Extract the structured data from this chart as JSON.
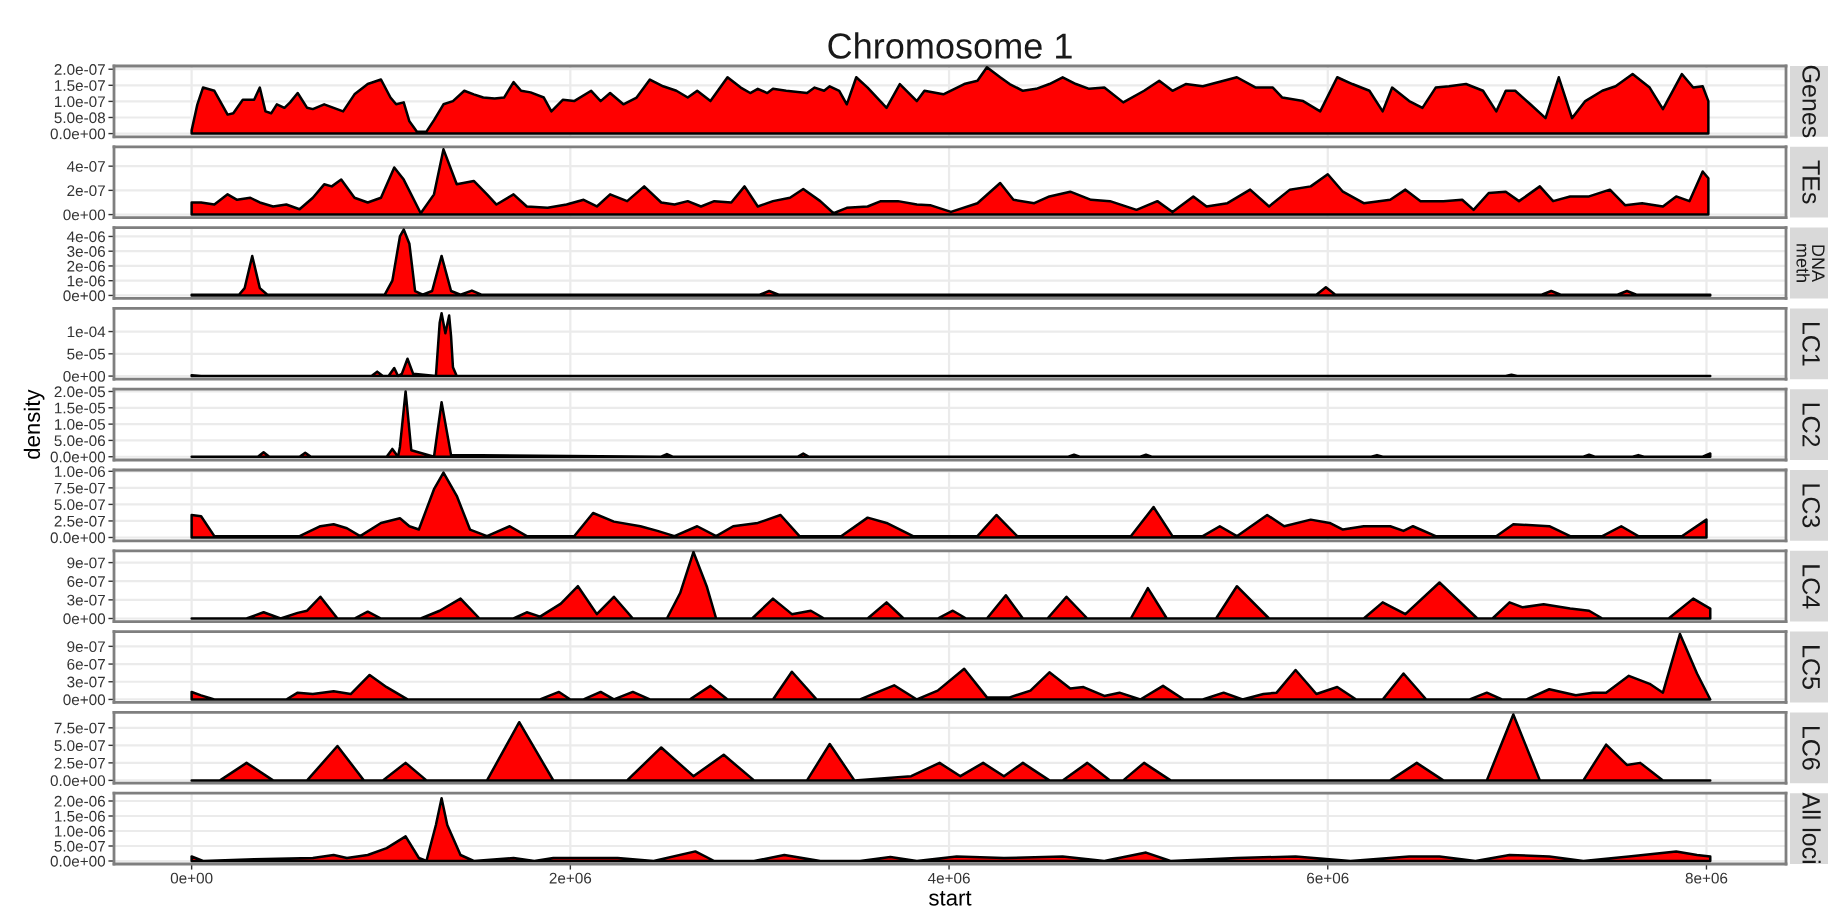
{
  "chart_data": [
    {
      "type": "area",
      "title": "Chromosome 1",
      "xlim": [
        -410000.0,
        8420000.0
      ],
      "xticks": [
        0,
        2000000.0,
        4000000.0,
        6000000.0,
        8000000.0
      ],
      "ylim": [
        -1e-08,
        2.1e-07
      ],
      "yticks": [
        {
          "value": 0,
          "label": "0.0e+00"
        },
        {
          "value": 5e-08,
          "label": "5.0e-08"
        },
        {
          "value": 1e-07,
          "label": "1.0e-07"
        },
        {
          "value": 1.5e-07,
          "label": "1.5e-07"
        },
        {
          "value": 2e-07,
          "label": "2.0e-07"
        }
      ],
      "grid": true,
      "tick_labels": "y",
      "series": [
        {
          "name": "Genes",
          "color": "#ff0000",
          "x": [
            0,
            30000.0,
            60000.0,
            120000.0,
            190000.0,
            220000.0,
            270000.0,
            330000.0,
            360000.0,
            390000.0,
            420000.0,
            450000.0,
            490000.0,
            520000.0,
            560000.0,
            610000.0,
            640000.0,
            700000.0,
            750000.0,
            800000.0,
            860000.0,
            930000.0,
            1000000.0,
            1050000.0,
            1080000.0,
            1120000.0,
            1150000.0,
            1190000.0,
            1240000.0,
            1280000.0,
            1330000.0,
            1380000.0,
            1440000.0,
            1490000.0,
            1540000.0,
            1600000.0,
            1650000.0,
            1700000.0,
            1740000.0,
            1790000.0,
            1860000.0,
            1900000.0,
            1960000.0,
            2020000.0,
            2110000.0,
            2160000.0,
            2210000.0,
            2280000.0,
            2350000.0,
            2420000.0,
            2490000.0,
            2560000.0,
            2620000.0,
            2670000.0,
            2740000.0,
            2830000.0,
            2900000.0,
            2950000.0,
            2990000.0,
            3040000.0,
            3070000.0,
            3140000.0,
            3250000.0,
            3290000.0,
            3340000.0,
            3370000.0,
            3420000.0,
            3460000.0,
            3510000.0,
            3570000.0,
            3670000.0,
            3740000.0,
            3830000.0,
            3870000.0,
            3970000.0,
            4080000.0,
            4150000.0,
            4200000.0,
            4270000.0,
            4320000.0,
            4390000.0,
            4460000.0,
            4530000.0,
            4600000.0,
            4670000.0,
            4740000.0,
            4820000.0,
            4920000.0,
            5030000.0,
            5110000.0,
            5180000.0,
            5250000.0,
            5340000.0,
            5450000.0,
            5520000.0,
            5620000.0,
            5710000.0,
            5760000.0,
            5870000.0,
            5960000.0,
            6050000.0,
            6130000.0,
            6220000.0,
            6290000.0,
            6340000.0,
            6430000.0,
            6500000.0,
            6570000.0,
            6640000.0,
            6730000.0,
            6820000.0,
            6890000.0,
            6940000.0,
            6990000.0,
            7070000.0,
            7150000.0,
            7220000.0,
            7290000.0,
            7360000.0,
            7450000.0,
            7520000.0,
            7610000.0,
            7700000.0,
            7770000.0,
            7870000.0,
            7930000.0,
            7980000.0,
            8010000.0
          ],
          "values": [
            1e-08,
            9e-08,
            1.43e-07,
            1.33e-07,
            5.9e-08,
            6.3e-08,
            1.05e-07,
            1.05e-07,
            1.43e-07,
            6.9e-08,
            6.3e-08,
            9.1e-08,
            8e-08,
            9.7e-08,
            1.26e-07,
            8e-08,
            7.6e-08,
            9.1e-08,
            8e-08,
            6.9e-08,
            1.22e-07,
            1.54e-07,
            1.68e-07,
            1.12e-07,
            9.1e-08,
            9.7e-08,
            3.8e-08,
            6e-09,
            6e-09,
            4.2e-08,
            9.1e-08,
            1.01e-07,
            1.33e-07,
            1.22e-07,
            1.12e-07,
            1.09e-07,
            1.12e-07,
            1.6e-07,
            1.33e-07,
            1.28e-07,
            1.12e-07,
            6.9e-08,
            1.05e-07,
            1.01e-07,
            1.33e-07,
            1.01e-07,
            1.26e-07,
            9.1e-08,
            1.12e-07,
            1.68e-07,
            1.47e-07,
            1.33e-07,
            1.12e-07,
            1.33e-07,
            1.01e-07,
            1.75e-07,
            1.43e-07,
            1.26e-07,
            1.39e-07,
            1.26e-07,
            1.39e-07,
            1.33e-07,
            1.26e-07,
            1.43e-07,
            1.33e-07,
            1.47e-07,
            1.33e-07,
            9.1e-08,
            1.75e-07,
            1.43e-07,
            8e-08,
            1.54e-07,
            1.01e-07,
            1.33e-07,
            1.22e-07,
            1.54e-07,
            1.64e-07,
            2.06e-07,
            1.75e-07,
            1.54e-07,
            1.33e-07,
            1.39e-07,
            1.54e-07,
            1.75e-07,
            1.54e-07,
            1.39e-07,
            1.43e-07,
            9.7e-08,
            1.33e-07,
            1.64e-07,
            1.33e-07,
            1.54e-07,
            1.47e-07,
            1.64e-07,
            1.75e-07,
            1.43e-07,
            1.43e-07,
            1.12e-07,
            1.01e-07,
            6.9e-08,
            1.75e-07,
            1.54e-07,
            1.33e-07,
            6.9e-08,
            1.43e-07,
            1.01e-07,
            8e-08,
            1.43e-07,
            1.47e-07,
            1.54e-07,
            1.33e-07,
            6.9e-08,
            1.33e-07,
            1.33e-07,
            9.1e-08,
            4.8e-08,
            1.75e-07,
            4.8e-08,
            1.01e-07,
            1.33e-07,
            1.47e-07,
            1.85e-07,
            1.43e-07,
            7.6e-08,
            1.85e-07,
            1.43e-07,
            1.47e-07,
            1.01e-07
          ]
        }
      ]
    },
    {
      "type": "area",
      "xlim": [
        -410000.0,
        8420000.0
      ],
      "xticks": [
        0,
        2000000.0,
        4000000.0,
        6000000.0,
        8000000.0
      ],
      "ylim": [
        -2.5e-08,
        5.6e-07
      ],
      "yticks": [
        {
          "value": 0,
          "label": "0e+00"
        },
        {
          "value": 2e-07,
          "label": "2e-07"
        },
        {
          "value": 4e-07,
          "label": "4e-07"
        }
      ],
      "grid": true,
      "tick_labels": "y",
      "series": [
        {
          "name": "TEs",
          "color": "#ff0000",
          "x": [
            0,
            50000.0,
            120000.0,
            190000.0,
            240000.0,
            310000.0,
            360000.0,
            430000.0,
            500000.0,
            570000.0,
            640000.0,
            700000.0,
            740000.0,
            790000.0,
            860000.0,
            930000.0,
            1000000.0,
            1070000.0,
            1120000.0,
            1210000.0,
            1280000.0,
            1330000.0,
            1400000.0,
            1490000.0,
            1560000.0,
            1610000.0,
            1700000.0,
            1770000.0,
            1880000.0,
            1980000.0,
            2070000.0,
            2140000.0,
            2210000.0,
            2300000.0,
            2390000.0,
            2480000.0,
            2550000.0,
            2620000.0,
            2690000.0,
            2760000.0,
            2850000.0,
            2920000.0,
            2990000.0,
            3070000.0,
            3160000.0,
            3230000.0,
            3320000.0,
            3390000.0,
            3460000.0,
            3570000.0,
            3640000.0,
            3730000.0,
            3830000.0,
            3900000.0,
            4010000.0,
            4150000.0,
            4270000.0,
            4340000.0,
            4450000.0,
            4530000.0,
            4640000.0,
            4750000.0,
            4850000.0,
            4990000.0,
            5100000.0,
            5180000.0,
            5290000.0,
            5360000.0,
            5470000.0,
            5590000.0,
            5690000.0,
            5800000.0,
            5910000.0,
            6000000.0,
            6080000.0,
            6190000.0,
            6330000.0,
            6410000.0,
            6490000.0,
            6610000.0,
            6710000.0,
            6770000.0,
            6850000.0,
            6940000.0,
            7010000.0,
            7120000.0,
            7190000.0,
            7280000.0,
            7380000.0,
            7490000.0,
            7570000.0,
            7660000.0,
            7770000.0,
            7840000.0,
            7910000.0,
            7980000.0,
            8010000.0
          ],
          "values": [
            1e-07,
            1e-07,
            8.3e-08,
            1.67e-07,
            1.22e-07,
            1.39e-07,
            1e-07,
            6.7e-08,
            8.3e-08,
            4.4e-08,
            1.39e-07,
            2.5e-07,
            2.33e-07,
            2.89e-07,
            1.39e-07,
            1e-07,
            1.39e-07,
            3.89e-07,
            2.89e-07,
            1.1e-08,
            1.67e-07,
            5.39e-07,
            2.5e-07,
            2.78e-07,
            1.67e-07,
            8.3e-08,
            1.67e-07,
            6.7e-08,
            5.6e-08,
            8.3e-08,
            1.22e-07,
            6.7e-08,
            1.67e-07,
            1.11e-07,
            2.33e-07,
            1e-07,
            8.3e-08,
            1.11e-07,
            6.7e-08,
            1.11e-07,
            1e-07,
            2.33e-07,
            6.7e-08,
            1.11e-07,
            1.39e-07,
            2.11e-07,
            1.11e-07,
            1.1e-08,
            5.6e-08,
            6.7e-08,
            1.11e-07,
            1.11e-07,
            8.3e-08,
            7.8e-08,
            2.2e-08,
            9.4e-08,
            2.61e-07,
            1.22e-07,
            9.4e-08,
            1.5e-07,
            1.89e-07,
            1.22e-07,
            1.11e-07,
            3.9e-08,
            1.11e-07,
            2.2e-08,
            1.5e-07,
            6.7e-08,
            9.4e-08,
            2.06e-07,
            6.7e-08,
            2.06e-07,
            2.33e-07,
            3.33e-07,
            1.89e-07,
            9.4e-08,
            1.22e-07,
            2.06e-07,
            1.11e-07,
            1.11e-07,
            1.22e-07,
            3.9e-08,
            1.78e-07,
            1.89e-07,
            1.11e-07,
            2.33e-07,
            1.11e-07,
            1.5e-07,
            1.5e-07,
            2.06e-07,
            7.8e-08,
            9.4e-08,
            6.7e-08,
            1.5e-07,
            1.11e-07,
            3.56e-07,
            3e-07
          ]
        }
      ]
    },
    {
      "type": "area",
      "xlim": [
        -410000.0,
        8420000.0
      ],
      "xticks": [
        0,
        2000000.0,
        4000000.0,
        6000000.0,
        8000000.0
      ],
      "ylim": [
        -2e-07,
        4.6e-06
      ],
      "yticks": [
        {
          "value": 0,
          "label": "0e+00"
        },
        {
          "value": 1e-06,
          "label": "1e-06"
        },
        {
          "value": 2e-06,
          "label": "2e-06"
        },
        {
          "value": 3e-06,
          "label": "3e-06"
        },
        {
          "value": 4e-06,
          "label": "4e-06"
        }
      ],
      "grid": true,
      "tick_labels": "y",
      "series": [
        {
          "name": "DNA\nmeth",
          "color": "#ff0000",
          "x": [
            0,
            250000.0,
            280000.0,
            320000.0,
            360000.0,
            400000.0,
            1020000.0,
            1060000.0,
            1100000.0,
            1120000.0,
            1150000.0,
            1180000.0,
            1220000.0,
            1270000.0,
            1320000.0,
            1370000.0,
            1420000.0,
            1480000.0,
            1530000.0,
            3000000.0,
            3050000.0,
            3100000.0,
            5940000.0,
            5990000.0,
            6040000.0,
            7130000.0,
            7180000.0,
            7230000.0,
            7530000.0,
            7580000.0,
            7630000.0,
            8020000.0
          ],
          "values": [
            5e-08,
            5e-08,
            5e-07,
            2.68e-06,
            5e-07,
            5e-08,
            5e-08,
            1e-06,
            4e-06,
            4.47e-06,
            3.5e-06,
            3e-07,
            5e-08,
            3e-07,
            2.68e-06,
            3e-07,
            5e-08,
            3.3e-07,
            5e-08,
            5e-08,
            3e-07,
            5e-08,
            5e-08,
            5.6e-07,
            5e-08,
            5e-08,
            3e-07,
            5e-08,
            5e-08,
            3e-07,
            5e-08,
            5e-08
          ]
        }
      ]
    },
    {
      "type": "area",
      "xlim": [
        -410000.0,
        8420000.0
      ],
      "xticks": [
        0,
        2000000.0,
        4000000.0,
        6000000.0,
        8000000.0
      ],
      "ylim": [
        -7e-06,
        0.000152
      ],
      "yticks": [
        {
          "value": 0,
          "label": "0e+00"
        },
        {
          "value": 5e-05,
          "label": "5e-05"
        },
        {
          "value": 0.0001,
          "label": "1e-04"
        }
      ],
      "grid": true,
      "tick_labels": "y",
      "series": [
        {
          "name": "LC1",
          "color": "#ff0000",
          "x": [
            0,
            50000.0,
            950000.0,
            980000.0,
            1010000.0,
            1040000.0,
            1070000.0,
            1090000.0,
            1110000.0,
            1140000.0,
            1170000.0,
            1290000.0,
            1310000.0,
            1320000.0,
            1340000.0,
            1360000.0,
            1370000.0,
            1380000.0,
            1400000.0,
            6940000.0,
            6970000.0,
            7000000.0,
            8020000.0
          ],
          "values": [
            2e-06,
            0,
            0,
            1e-05,
            0,
            0,
            1.8e-05,
            0,
            5e-06,
            3.9e-05,
            5e-06,
            0,
            0.00012,
            0.000141,
            9.6e-05,
            0.000136,
            9e-05,
            2e-05,
            0,
            0,
            3e-06,
            0,
            0
          ]
        }
      ]
    },
    {
      "type": "area",
      "ylabel": "density",
      "xlim": [
        -410000.0,
        8420000.0
      ],
      "xticks": [
        0,
        2000000.0,
        4000000.0,
        6000000.0,
        8000000.0
      ],
      "ylim": [
        -1e-06,
        2.07e-05
      ],
      "yticks": [
        {
          "value": 0,
          "label": "0.0e+00"
        },
        {
          "value": 5e-06,
          "label": "5.0e-06"
        },
        {
          "value": 1e-05,
          "label": "1.0e-05"
        },
        {
          "value": 1.5e-05,
          "label": "1.5e-05"
        },
        {
          "value": 2e-05,
          "label": "2.0e-05"
        }
      ],
      "grid": true,
      "tick_labels": "y",
      "series": [
        {
          "name": "LC2",
          "color": "#ff0000",
          "x": [
            0,
            350000.0,
            380000.0,
            410000.0,
            570000.0,
            600000.0,
            630000.0,
            1030000.0,
            1060000.0,
            1090000.0,
            1100000.0,
            1130000.0,
            1160000.0,
            1280000.0,
            1320000.0,
            1370000.0,
            2480000.0,
            2510000.0,
            2540000.0,
            3200000.0,
            3230000.0,
            3260000.0,
            4630000.0,
            4660000.0,
            4690000.0,
            5010000.0,
            5040000.0,
            5070000.0,
            6230000.0,
            6260000.0,
            6290000.0,
            7350000.0,
            7380000.0,
            7410000.0,
            7610000.0,
            7640000.0,
            7670000.0,
            7980000.0,
            8020000.0
          ],
          "values": [
            0,
            0,
            1.4e-06,
            0,
            0,
            1.2e-06,
            0,
            0,
            2.4e-06,
            0,
            3e-06,
            2e-05,
            2e-06,
            0,
            1.67e-05,
            5e-07,
            0,
            8e-07,
            0,
            0,
            1e-06,
            0,
            0,
            6e-07,
            0,
            0,
            6e-07,
            0,
            0,
            5e-07,
            0,
            0,
            6e-07,
            0,
            0,
            5e-07,
            0,
            0,
            1e-06
          ]
        }
      ]
    },
    {
      "type": "area",
      "xlim": [
        -410000.0,
        8420000.0
      ],
      "xticks": [
        0,
        2000000.0,
        4000000.0,
        6000000.0,
        8000000.0
      ],
      "ylim": [
        -5e-08,
        1.02e-06
      ],
      "yticks": [
        {
          "value": 0,
          "label": "0.0e+00"
        },
        {
          "value": 2.5e-07,
          "label": "2.5e-07"
        },
        {
          "value": 5e-07,
          "label": "5.0e-07"
        },
        {
          "value": 7.5e-07,
          "label": "7.5e-07"
        },
        {
          "value": 1e-06,
          "label": "1.0e-06"
        }
      ],
      "grid": true,
      "tick_labels": "y",
      "series": [
        {
          "name": "LC3",
          "color": "#ff0000",
          "x": [
            0,
            50000.0,
            120000.0,
            570000.0,
            680000.0,
            750000.0,
            820000.0,
            890000.0,
            1000000.0,
            1100000.0,
            1150000.0,
            1200000.0,
            1280000.0,
            1330000.0,
            1400000.0,
            1470000.0,
            1560000.0,
            1680000.0,
            1770000.0,
            2020000.0,
            2120000.0,
            2230000.0,
            2370000.0,
            2460000.0,
            2550000.0,
            2670000.0,
            2770000.0,
            2860000.0,
            2990000.0,
            3110000.0,
            3210000.0,
            3430000.0,
            3570000.0,
            3670000.0,
            3810000.0,
            4150000.0,
            4250000.0,
            4360000.0,
            4960000.0,
            5080000.0,
            5180000.0,
            5340000.0,
            5430000.0,
            5520000.0,
            5680000.0,
            5770000.0,
            5910000.0,
            6010000.0,
            6080000.0,
            6190000.0,
            6330000.0,
            6400000.0,
            6450000.0,
            6570000.0,
            6890000.0,
            6980000.0,
            7170000.0,
            7280000.0,
            7450000.0,
            7550000.0,
            7640000.0,
            7870000.0,
            8000000.0
          ],
          "values": [
            3.4e-07,
            3.2e-07,
            2e-08,
            2e-08,
            1.7e-07,
            2e-07,
            1.4e-07,
            2e-08,
            2.2e-07,
            2.9e-07,
            1.7e-07,
            1.2e-07,
            7.3e-07,
            9.8e-07,
            6.3e-07,
            1.2e-07,
            2e-08,
            1.7e-07,
            2e-08,
            2e-08,
            3.7e-07,
            2.4e-07,
            1.7e-07,
            1e-07,
            2e-08,
            1.7e-07,
            2e-08,
            1.7e-07,
            2.2e-07,
            3.4e-07,
            2e-08,
            2e-08,
            3e-07,
            2.2e-07,
            2e-08,
            2e-08,
            3.4e-07,
            2e-08,
            2e-08,
            4.6e-07,
            2e-08,
            2e-08,
            1.7e-07,
            2e-08,
            3.4e-07,
            1.7e-07,
            2.7e-07,
            2.2e-07,
            1.2e-07,
            1.7e-07,
            1.7e-07,
            1e-07,
            1.7e-07,
            2e-08,
            2e-08,
            2e-07,
            1.7e-07,
            2e-08,
            2e-08,
            1.7e-07,
            2e-08,
            2e-08,
            2.7e-07
          ]
        }
      ]
    },
    {
      "type": "area",
      "xlim": [
        -410000.0,
        8420000.0
      ],
      "xticks": [
        0,
        2000000.0,
        4000000.0,
        6000000.0,
        8000000.0
      ],
      "ylim": [
        -5e-08,
        1.09e-06
      ],
      "yticks": [
        {
          "value": 0,
          "label": "0e+00"
        },
        {
          "value": 3e-07,
          "label": "3e-07"
        },
        {
          "value": 6e-07,
          "label": "6e-07"
        },
        {
          "value": 9e-07,
          "label": "9e-07"
        }
      ],
      "grid": true,
      "tick_labels": "y",
      "series": [
        {
          "name": "LC4",
          "color": "#ff0000",
          "x": [
            0,
            290000.0,
            380000.0,
            470000.0,
            560000.0,
            610000.0,
            680000.0,
            770000.0,
            860000.0,
            930000.0,
            1000000.0,
            1210000.0,
            1310000.0,
            1420000.0,
            1520000.0,
            1700000.0,
            1770000.0,
            1840000.0,
            1950000.0,
            2040000.0,
            2140000.0,
            2230000.0,
            2330000.0,
            2510000.0,
            2580000.0,
            2650000.0,
            2720000.0,
            2770000.0,
            2960000.0,
            3070000.0,
            3170000.0,
            3270000.0,
            3340000.0,
            3570000.0,
            3670000.0,
            3760000.0,
            3940000.0,
            4020000.0,
            4090000.0,
            4200000.0,
            4300000.0,
            4390000.0,
            4520000.0,
            4620000.0,
            4730000.0,
            4960000.0,
            5050000.0,
            5150000.0,
            5410000.0,
            5520000.0,
            5690000.0,
            6190000.0,
            6290000.0,
            6410000.0,
            6590000.0,
            6790000.0,
            6870000.0,
            6960000.0,
            7030000.0,
            7140000.0,
            7280000.0,
            7380000.0,
            7450000.0,
            7800000.0,
            7930000.0,
            8020000.0
          ],
          "values": [
            0,
            0,
            1e-07,
            0,
            9e-08,
            1.25e-07,
            3.5e-07,
            0,
            0,
            1.1e-07,
            0,
            0,
            1.25e-07,
            3.2e-07,
            0,
            0,
            1e-07,
            3e-08,
            2.4e-07,
            5.2e-07,
            7e-08,
            3.5e-07,
            0,
            0,
            4.1e-07,
            1.07e-06,
            5.2e-07,
            0,
            0,
            3.2e-07,
            7e-08,
            1.25e-07,
            0,
            0,
            2.6e-07,
            0,
            0,
            1.25e-07,
            0,
            0,
            3.75e-07,
            0,
            0,
            3.5e-07,
            0,
            0,
            4.9e-07,
            0,
            0,
            5.2e-07,
            0,
            0,
            2.6e-07,
            7e-08,
            5.8e-07,
            0,
            0,
            2.6e-07,
            1.8e-07,
            2.3e-07,
            1.6e-07,
            1.25e-07,
            0,
            0,
            3.2e-07,
            1.6e-07
          ]
        }
      ]
    },
    {
      "type": "area",
      "xlim": [
        -410000.0,
        8420000.0
      ],
      "xticks": [
        0,
        2000000.0,
        4000000.0,
        6000000.0,
        8000000.0
      ],
      "ylim": [
        -5e-08,
        1.15e-06
      ],
      "yticks": [
        {
          "value": 0,
          "label": "0e+00"
        },
        {
          "value": 3e-07,
          "label": "3e-07"
        },
        {
          "value": 6e-07,
          "label": "6e-07"
        },
        {
          "value": 9e-07,
          "label": "9e-07"
        }
      ],
      "grid": true,
      "tick_labels": "y",
      "series": [
        {
          "name": "LC5",
          "color": "#ff0000",
          "x": [
            0,
            50000.0,
            120000.0,
            500000.0,
            560000.0,
            640000.0,
            750000.0,
            840000.0,
            940000.0,
            1030000.0,
            1140000.0,
            1840000.0,
            1940000.0,
            2000000.0,
            2070000.0,
            2160000.0,
            2230000.0,
            2330000.0,
            2420000.0,
            2630000.0,
            2740000.0,
            2830000.0,
            3070000.0,
            3170000.0,
            3300000.0,
            3530000.0,
            3710000.0,
            3830000.0,
            3940000.0,
            4080000.0,
            4200000.0,
            4320000.0,
            4430000.0,
            4530000.0,
            4640000.0,
            4710000.0,
            4820000.0,
            4900000.0,
            5010000.0,
            5130000.0,
            5240000.0,
            5340000.0,
            5450000.0,
            5550000.0,
            5660000.0,
            5730000.0,
            5830000.0,
            5940000.0,
            6050000.0,
            6150000.0,
            6290000.0,
            6400000.0,
            6520000.0,
            6750000.0,
            6840000.0,
            6920000.0,
            7050000.0,
            7170000.0,
            7310000.0,
            7400000.0,
            7470000.0,
            7590000.0,
            7700000.0,
            7770000.0,
            7860000.0,
            7950000.0,
            8020000.0
          ],
          "values": [
            1.27e-07,
            7e-08,
            0,
            0,
            1.15e-07,
            9.2e-08,
            1.38e-07,
            9.2e-08,
            4.15e-07,
            2.08e-07,
            0,
            0,
            1.27e-07,
            0,
            0,
            1.27e-07,
            0,
            1.27e-07,
            0,
            0,
            2.3e-07,
            0,
            0,
            4.7e-07,
            0,
            0,
            2.4e-07,
            0,
            1.5e-07,
            5.2e-07,
            3.5e-08,
            3.5e-08,
            1.5e-07,
            4.6e-07,
            1.85e-07,
            2.1e-07,
            6e-08,
            1.15e-07,
            0,
            2.3e-07,
            0,
            0,
            1.15e-07,
            0,
            9.2e-08,
            1.15e-07,
            5e-07,
            9.2e-08,
            2.1e-07,
            0,
            0,
            4.4e-07,
            0,
            0,
            1.15e-07,
            0,
            0,
            1.73e-07,
            7e-08,
            1.15e-07,
            1.15e-07,
            4e-07,
            2.65e-07,
            1.15e-07,
            1.11e-06,
            4.4e-07,
            0
          ]
        }
      ]
    },
    {
      "type": "area",
      "xlim": [
        -410000.0,
        8420000.0
      ],
      "xticks": [
        0,
        2000000.0,
        4000000.0,
        6000000.0,
        8000000.0
      ],
      "ylim": [
        -4e-08,
        9.7e-07
      ],
      "yticks": [
        {
          "value": 0,
          "label": "0.0e+00"
        },
        {
          "value": 2.5e-07,
          "label": "2.5e-07"
        },
        {
          "value": 5e-07,
          "label": "5.0e-07"
        },
        {
          "value": 7.5e-07,
          "label": "7.5e-07"
        }
      ],
      "grid": true,
      "tick_labels": "y",
      "series": [
        {
          "name": "LC6",
          "color": "#ff0000",
          "x": [
            0,
            150000.0,
            290000.0,
            430000.0,
            610000.0,
            770000.0,
            910000.0,
            1010000.0,
            1130000.0,
            1240000.0,
            1560000.0,
            1730000.0,
            1910000.0,
            2300000.0,
            2480000.0,
            2650000.0,
            2810000.0,
            2970000.0,
            3250000.0,
            3370000.0,
            3500000.0,
            3800000.0,
            3950000.0,
            4060000.0,
            4180000.0,
            4290000.0,
            4390000.0,
            4530000.0,
            4600000.0,
            4730000.0,
            4850000.0,
            4920000.0,
            5030000.0,
            5170000.0,
            6330000.0,
            6470000.0,
            6610000.0,
            6840000.0,
            6980000.0,
            7120000.0,
            7350000.0,
            7470000.0,
            7580000.0,
            7650000.0,
            7770000.0,
            8020000.0
          ],
          "values": [
            0,
            0,
            2.5e-07,
            0,
            0,
            4.9e-07,
            0,
            0,
            2.5e-07,
            0,
            0,
            8.3e-07,
            0,
            0,
            4.7e-07,
            6e-08,
            3.65e-07,
            0,
            0,
            5.2e-07,
            0,
            6e-08,
            2.5e-07,
            6e-08,
            2.5e-07,
            6e-08,
            2.5e-07,
            0,
            0,
            2.5e-07,
            0,
            0,
            2.5e-07,
            0,
            0,
            2.5e-07,
            0,
            0,
            9.4e-07,
            0,
            0,
            5.1e-07,
            2.2e-07,
            2.5e-07,
            0,
            0
          ]
        }
      ]
    },
    {
      "type": "area",
      "xlabel": "start",
      "xlim": [
        -410000.0,
        8420000.0
      ],
      "xticks": [
        {
          "value": 0,
          "label": "0e+00"
        },
        {
          "value": 2000000.0,
          "label": "2e+06"
        },
        {
          "value": 4000000.0,
          "label": "4e+06"
        },
        {
          "value": 6000000.0,
          "label": "6e+06"
        },
        {
          "value": 8000000.0,
          "label": "8e+06"
        }
      ],
      "ylim": [
        -1e-07,
        2.26e-06
      ],
      "yticks": [
        {
          "value": 0,
          "label": "0.0e+00"
        },
        {
          "value": 5e-07,
          "label": "5.0e-07"
        },
        {
          "value": 1e-06,
          "label": "1.0e-06"
        },
        {
          "value": 1.5e-06,
          "label": "1.5e-06"
        },
        {
          "value": 2e-06,
          "label": "2.0e-06"
        }
      ],
      "grid": true,
      "series": [
        {
          "name": "All loci",
          "color": "#ff0000",
          "x": [
            0,
            60000.0,
            330000.0,
            640000.0,
            750000.0,
            820000.0,
            930000.0,
            1030000.0,
            1130000.0,
            1200000.0,
            1240000.0,
            1290000.0,
            1320000.0,
            1350000.0,
            1420000.0,
            1490000.0,
            1700000.0,
            1810000.0,
            1910000.0,
            2090000.0,
            2250000.0,
            2440000.0,
            2660000.0,
            2760000.0,
            2970000.0,
            3130000.0,
            3320000.0,
            3530000.0,
            3690000.0,
            3830000.0,
            4040000.0,
            4290000.0,
            4600000.0,
            4820000.0,
            5040000.0,
            5170000.0,
            5520000.0,
            5830000.0,
            6120000.0,
            6430000.0,
            6590000.0,
            6780000.0,
            6960000.0,
            7170000.0,
            7350000.0,
            7590000.0,
            7840000.0,
            7950000.0,
            8020000.0
          ],
          "values": [
            1.5e-07,
            0,
            6e-08,
            1e-07,
            2e-07,
            1e-07,
            2e-07,
            4.3e-07,
            8.2e-07,
            1e-07,
            0,
            1.2e-06,
            2.09e-06,
            1.2e-06,
            2e-07,
            0,
            1e-07,
            0,
            1e-07,
            1e-07,
            1e-07,
            0,
            3.2e-07,
            0,
            0,
            2e-07,
            0,
            0,
            1.3e-07,
            0,
            1.5e-07,
            1e-07,
            1.5e-07,
            0,
            2.8e-07,
            0,
            1e-07,
            1.5e-07,
            0,
            1.5e-07,
            1.5e-07,
            0,
            2e-07,
            1.5e-07,
            0,
            1.5e-07,
            3.2e-07,
            2e-07,
            1.5e-07
          ]
        }
      ]
    }
  ]
}
